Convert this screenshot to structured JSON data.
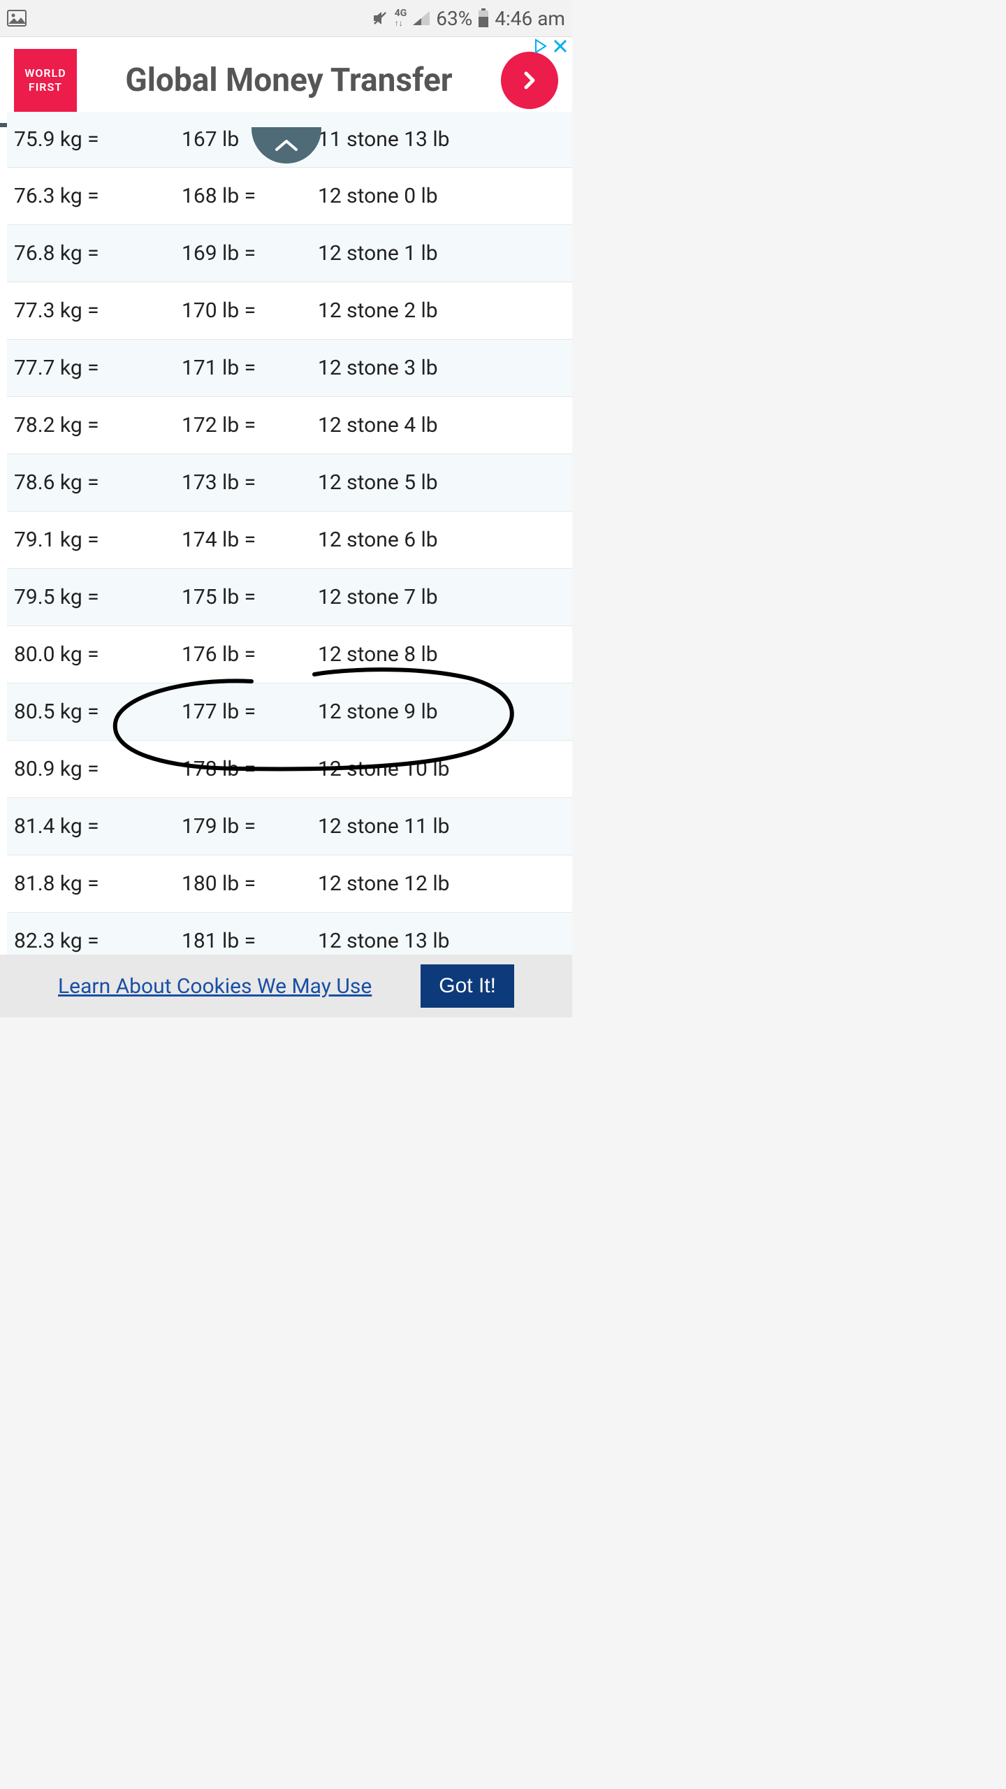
{
  "status": {
    "battery_pct": "63%",
    "time": "4:46 am",
    "net_label": "4G"
  },
  "ad": {
    "logo_line1": "WORLD",
    "logo_line2": "FIRST",
    "title": "Global Money Transfer",
    "logo_bg": "#ec1c4b",
    "arrow_bg": "#ec1c4b"
  },
  "table": {
    "rows": [
      {
        "kg": "75.9 kg =",
        "lb": "167 lb",
        "stone": "11 stone 13 lb"
      },
      {
        "kg": "76.3 kg =",
        "lb": "168 lb =",
        "stone": "12 stone 0 lb"
      },
      {
        "kg": "76.8 kg =",
        "lb": "169 lb =",
        "stone": "12 stone 1 lb"
      },
      {
        "kg": "77.3 kg =",
        "lb": "170 lb =",
        "stone": "12 stone 2 lb"
      },
      {
        "kg": "77.7 kg =",
        "lb": "171 lb =",
        "stone": "12 stone 3 lb"
      },
      {
        "kg": "78.2 kg =",
        "lb": "172 lb =",
        "stone": "12 stone 4 lb"
      },
      {
        "kg": "78.6 kg =",
        "lb": "173 lb =",
        "stone": "12 stone 5 lb"
      },
      {
        "kg": "79.1 kg =",
        "lb": "174 lb =",
        "stone": "12 stone 6 lb"
      },
      {
        "kg": "79.5 kg =",
        "lb": "175 lb =",
        "stone": "12 stone 7 lb"
      },
      {
        "kg": "80.0 kg =",
        "lb": "176 lb =",
        "stone": "12 stone 8 lb"
      },
      {
        "kg": "80.5 kg =",
        "lb": "177 lb =",
        "stone": "12 stone 9 lb"
      },
      {
        "kg": "80.9 kg =",
        "lb": "178 lb =",
        "stone": "12 stone 10 lb"
      },
      {
        "kg": "81.4 kg =",
        "lb": "179 lb =",
        "stone": "12 stone 11 lb"
      },
      {
        "kg": "81.8 kg =",
        "lb": "180 lb =",
        "stone": "12 stone 12 lb"
      },
      {
        "kg": "82.3 kg =",
        "lb": "181 lb =",
        "stone": "12 stone 13 lb"
      }
    ],
    "row_colors": {
      "even": "#ffffff",
      "odd": "#f4fafc"
    },
    "circled_row_index": 10,
    "scribble_stroke": "#000000"
  },
  "cookie": {
    "link_text": "Learn About Cookies We May Use",
    "button_text": "Got It!"
  }
}
